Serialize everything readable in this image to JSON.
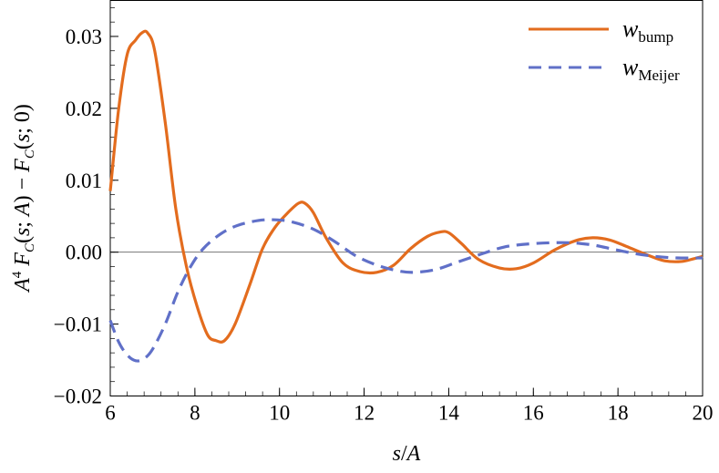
{
  "chart_data": {
    "type": "line",
    "xlabel": "s/A",
    "ylabel": "A^4 F_C(s;A) − F_C(s;0)",
    "xlim": [
      6,
      20
    ],
    "ylim": [
      -0.02,
      0.035
    ],
    "xticks": [
      6,
      8,
      10,
      12,
      14,
      16,
      18,
      20
    ],
    "xtick_labels": [
      "6",
      "8",
      "10",
      "12",
      "14",
      "16",
      "18",
      "20"
    ],
    "yticks": [
      -0.02,
      -0.01,
      0.0,
      0.01,
      0.02,
      0.03
    ],
    "ytick_labels": [
      "−0.02",
      "−0.01",
      "0.00",
      "0.01",
      "0.02",
      "0.03"
    ],
    "grid": false,
    "legend_position": "top-right",
    "series": [
      {
        "name": "w_bump",
        "legend_main": "w",
        "legend_sub": "bump",
        "color": "#e36c1e",
        "style": "solid",
        "points": [
          [
            6.0,
            0.0085
          ],
          [
            6.2,
            0.02
          ],
          [
            6.4,
            0.0275
          ],
          [
            6.6,
            0.0295
          ],
          [
            6.75,
            0.0305
          ],
          [
            6.88,
            0.0305
          ],
          [
            7.05,
            0.028
          ],
          [
            7.3,
            0.018
          ],
          [
            7.55,
            0.006
          ],
          [
            7.8,
            -0.002
          ],
          [
            8.05,
            -0.0075
          ],
          [
            8.3,
            -0.0115
          ],
          [
            8.5,
            -0.0123
          ],
          [
            8.7,
            -0.0123
          ],
          [
            8.95,
            -0.01
          ],
          [
            9.3,
            -0.0045
          ],
          [
            9.6,
            0.0005
          ],
          [
            9.9,
            0.0035
          ],
          [
            10.2,
            0.0055
          ],
          [
            10.45,
            0.0068
          ],
          [
            10.6,
            0.0068
          ],
          [
            10.8,
            0.0055
          ],
          [
            11.1,
            0.002
          ],
          [
            11.5,
            -0.0015
          ],
          [
            11.9,
            -0.0027
          ],
          [
            12.3,
            -0.0028
          ],
          [
            12.7,
            -0.0018
          ],
          [
            13.1,
            0.0005
          ],
          [
            13.5,
            0.0022
          ],
          [
            13.8,
            0.0028
          ],
          [
            14.0,
            0.0027
          ],
          [
            14.3,
            0.0012
          ],
          [
            14.7,
            -0.001
          ],
          [
            15.2,
            -0.0022
          ],
          [
            15.6,
            -0.0023
          ],
          [
            16.0,
            -0.0015
          ],
          [
            16.5,
            0.0003
          ],
          [
            17.0,
            0.0016
          ],
          [
            17.4,
            0.002
          ],
          [
            17.8,
            0.0017
          ],
          [
            18.2,
            0.0008
          ],
          [
            18.7,
            -0.0004
          ],
          [
            19.1,
            -0.0012
          ],
          [
            19.5,
            -0.0013
          ],
          [
            19.8,
            -0.0009
          ],
          [
            20.0,
            -0.0006
          ]
        ]
      },
      {
        "name": "w_Meijer",
        "legend_main": "w",
        "legend_sub": "Meijer",
        "color": "#6070c8",
        "style": "dashed",
        "points": [
          [
            6.0,
            -0.0095
          ],
          [
            6.2,
            -0.0125
          ],
          [
            6.4,
            -0.0143
          ],
          [
            6.6,
            -0.0151
          ],
          [
            6.8,
            -0.0148
          ],
          [
            7.0,
            -0.0135
          ],
          [
            7.3,
            -0.01
          ],
          [
            7.6,
            -0.0055
          ],
          [
            7.9,
            -0.002
          ],
          [
            8.2,
            0.0005
          ],
          [
            8.6,
            0.0025
          ],
          [
            9.0,
            0.0037
          ],
          [
            9.5,
            0.0044
          ],
          [
            9.9,
            0.0045
          ],
          [
            10.3,
            0.0042
          ],
          [
            10.8,
            0.0032
          ],
          [
            11.3,
            0.0015
          ],
          [
            11.8,
            -0.0005
          ],
          [
            12.3,
            -0.0018
          ],
          [
            12.8,
            -0.0026
          ],
          [
            13.2,
            -0.0028
          ],
          [
            13.7,
            -0.0024
          ],
          [
            14.2,
            -0.0014
          ],
          [
            14.8,
            -0.0002
          ],
          [
            15.3,
            0.0007
          ],
          [
            15.8,
            0.0011
          ],
          [
            16.4,
            0.0013
          ],
          [
            16.9,
            0.0013
          ],
          [
            17.4,
            0.001
          ],
          [
            17.9,
            0.0004
          ],
          [
            18.4,
            -0.0002
          ],
          [
            18.9,
            -0.0006
          ],
          [
            19.4,
            -0.0008
          ],
          [
            20.0,
            -0.0008
          ]
        ]
      }
    ]
  }
}
